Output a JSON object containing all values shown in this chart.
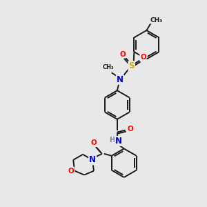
{
  "background_color": "#e8e8e8",
  "bond_color": "#1a1a1a",
  "atom_colors": {
    "N": "#0000cc",
    "O": "#ff0000",
    "S": "#ccaa00",
    "H": "#708090",
    "C": "#1a1a1a"
  },
  "figsize": [
    3.0,
    3.0
  ],
  "dpi": 100,
  "lw": 1.4
}
